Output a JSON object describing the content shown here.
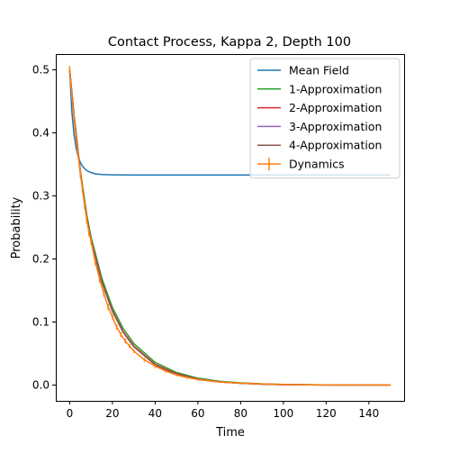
{
  "chart_data": {
    "type": "line",
    "title": "Contact Process, Kappa 2, Depth 100",
    "xlabel": "Time",
    "ylabel": "Probability",
    "xlim": [
      -6.5,
      156.5
    ],
    "ylim": [
      -0.025,
      0.525
    ],
    "xticks": [
      0,
      20,
      40,
      60,
      80,
      100,
      120,
      140
    ],
    "yticks": [
      0.0,
      0.1,
      0.2,
      0.3,
      0.4,
      0.5
    ],
    "xtick_labels": [
      "0",
      "20",
      "40",
      "60",
      "80",
      "100",
      "120",
      "140"
    ],
    "ytick_labels": [
      "0.0",
      "0.1",
      "0.2",
      "0.3",
      "0.4",
      "0.5"
    ],
    "grid": false,
    "legend_position": "top-right",
    "series": [
      {
        "name": "Mean Field",
        "color": "#1f77b4",
        "x": [
          0,
          1,
          2,
          3,
          4,
          5,
          6,
          8,
          10,
          12,
          15,
          20,
          30,
          50,
          100,
          150
        ],
        "y": [
          0.5,
          0.434,
          0.398,
          0.376,
          0.362,
          0.353,
          0.347,
          0.34,
          0.337,
          0.335,
          0.334,
          0.3334,
          0.3333,
          0.3333,
          0.3333,
          0.3333
        ]
      },
      {
        "name": "1-Approximation",
        "color": "#2ca02c",
        "x": [
          0,
          2,
          5,
          8,
          10,
          15,
          20,
          25,
          30,
          40,
          50,
          60,
          70,
          80,
          90,
          100,
          120,
          150
        ],
        "y": [
          0.5,
          0.43,
          0.34,
          0.27,
          0.235,
          0.17,
          0.123,
          0.09,
          0.066,
          0.036,
          0.02,
          0.011,
          0.006,
          0.0035,
          0.002,
          0.001,
          0.0003,
          0.0001
        ]
      },
      {
        "name": "2-Approximation",
        "color": "#d62728",
        "x": [
          0,
          2,
          5,
          8,
          10,
          15,
          20,
          25,
          30,
          40,
          50,
          60,
          70,
          80,
          90,
          100,
          120,
          150
        ],
        "y": [
          0.5,
          0.428,
          0.337,
          0.266,
          0.23,
          0.165,
          0.118,
          0.085,
          0.062,
          0.033,
          0.018,
          0.0095,
          0.005,
          0.003,
          0.0016,
          0.0008,
          0.0002,
          0.0001
        ]
      },
      {
        "name": "3-Approximation",
        "color": "#9467bd",
        "x": [
          0,
          2,
          5,
          8,
          10,
          15,
          20,
          25,
          30,
          40,
          50,
          60,
          70,
          80,
          90,
          100,
          120,
          150
        ],
        "y": [
          0.5,
          0.428,
          0.336,
          0.265,
          0.229,
          0.164,
          0.117,
          0.084,
          0.061,
          0.032,
          0.017,
          0.009,
          0.005,
          0.0028,
          0.0015,
          0.0008,
          0.0002,
          0.0001
        ]
      },
      {
        "name": "4-Approximation",
        "color": "#8c564b",
        "x": [
          0,
          2,
          5,
          8,
          10,
          15,
          20,
          25,
          30,
          40,
          50,
          60,
          70,
          80,
          90,
          100,
          120,
          150
        ],
        "y": [
          0.5,
          0.428,
          0.336,
          0.265,
          0.229,
          0.164,
          0.117,
          0.084,
          0.061,
          0.032,
          0.017,
          0.009,
          0.005,
          0.0028,
          0.0015,
          0.0008,
          0.0002,
          0.0001
        ]
      },
      {
        "name": "Dynamics",
        "color": "#ff7f0e",
        "errorbars": true,
        "x": [
          0,
          1,
          2,
          3,
          4,
          5,
          6,
          7,
          8,
          9,
          10,
          12,
          14,
          16,
          18,
          20,
          22,
          24,
          26,
          28,
          30,
          35,
          40,
          45,
          50,
          55,
          60,
          70,
          80,
          90,
          100,
          110,
          120,
          130,
          140,
          150
        ],
        "y": [
          0.5,
          0.46,
          0.425,
          0.39,
          0.365,
          0.335,
          0.31,
          0.285,
          0.262,
          0.242,
          0.228,
          0.195,
          0.168,
          0.145,
          0.124,
          0.108,
          0.092,
          0.08,
          0.07,
          0.062,
          0.054,
          0.04,
          0.03,
          0.022,
          0.016,
          0.012,
          0.009,
          0.005,
          0.003,
          0.0018,
          0.001,
          0.0006,
          0.0003,
          0.0002,
          0.0001,
          0.0001
        ],
        "err": [
          0.006,
          0.006,
          0.006,
          0.006,
          0.006,
          0.006,
          0.006,
          0.006,
          0.006,
          0.006,
          0.006,
          0.005,
          0.005,
          0.005,
          0.005,
          0.004,
          0.004,
          0.004,
          0.004,
          0.003,
          0.003,
          0.003,
          0.003,
          0.002,
          0.002,
          0.002,
          0.002,
          0.001,
          0.001,
          0.001,
          0.001,
          0.001,
          0.001,
          0.001,
          0.001,
          0.001
        ]
      }
    ]
  }
}
